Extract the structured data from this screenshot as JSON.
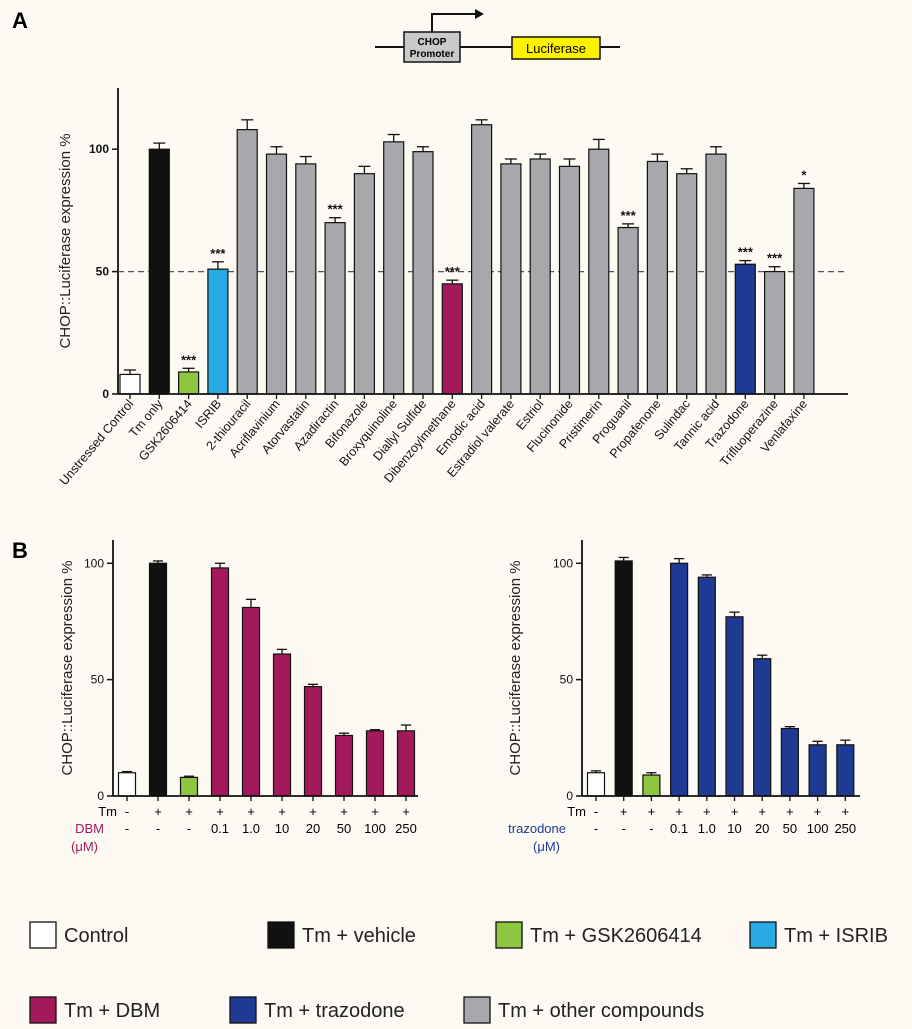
{
  "panel_labels": {
    "a": "A",
    "b": "B"
  },
  "diagram": {
    "promoter_line1": "CHOP",
    "promoter_line2": "Promoter",
    "reporter": "Luciferase"
  },
  "colors": {
    "control": "#ffffff",
    "vehicle": "#111111",
    "gsk": "#8dc63f",
    "isrib": "#29a9e1",
    "dbm": "#a3195b",
    "trazodone": "#1f3a93",
    "other": "#a6a8ab",
    "reporter_fill": "#fff200"
  },
  "chart_data": [
    {
      "type": "bar",
      "panel": "A",
      "ylabel": "CHOP::Luciferase expression %",
      "ylim": [
        0,
        125
      ],
      "yticks": [
        0,
        50,
        100
      ],
      "reference_line": 50,
      "categories": [
        "Unstressed Control",
        "Tm only",
        "GSK2606414",
        "ISRIB",
        "2-thiouracil",
        "Acriflavinium",
        "Atorvastatin",
        "Azadiractin",
        "Bifonazole",
        "Broxyquinoline",
        "Diallyl Sulfide",
        "Dibenzoylmethane",
        "Emodic acid",
        "Estradiol valerate",
        "Estriol",
        "Flucinonide",
        "Pristimerin",
        "Proguanil",
        "Propafenone",
        "Sulindac",
        "Tannic acid",
        "Trazodone",
        "Trifluoperazine",
        "Venlafaxine"
      ],
      "values": [
        8,
        100,
        9,
        51,
        108,
        98,
        94,
        70,
        90,
        103,
        99,
        45,
        110,
        94,
        96,
        93,
        100,
        68,
        95,
        90,
        98,
        53,
        50,
        84
      ],
      "errors": [
        1.8,
        2.5,
        1.5,
        3,
        4,
        3,
        3,
        2,
        3,
        3,
        2,
        1.5,
        2,
        2,
        2,
        3,
        4,
        1.5,
        3,
        2,
        3,
        1.5,
        2,
        2
      ],
      "groups": [
        "control",
        "vehicle",
        "gsk",
        "isrib",
        "other",
        "other",
        "other",
        "other",
        "other",
        "other",
        "other",
        "dbm",
        "other",
        "other",
        "other",
        "other",
        "other",
        "other",
        "other",
        "other",
        "other",
        "trazodone",
        "other",
        "other"
      ],
      "significance": [
        "",
        "",
        "***",
        "***",
        "",
        "",
        "",
        "***",
        "",
        "",
        "",
        "***",
        "",
        "",
        "",
        "",
        "",
        "***",
        "",
        "",
        "",
        "***",
        "***",
        "*"
      ]
    },
    {
      "type": "bar",
      "panel": "B-left",
      "ylabel": "CHOP::Luciferase expression %",
      "ylim": [
        0,
        110
      ],
      "yticks": [
        0,
        50,
        100
      ],
      "tm_row": [
        "-",
        "+",
        "+",
        "+",
        "+",
        "+",
        "+",
        "+",
        "+",
        "+"
      ],
      "dose_label": "DBM",
      "dose_unit": "(μM)",
      "dose_row": [
        "-",
        "-",
        "-",
        "0.1",
        "1.0",
        "10",
        "20",
        "50",
        "100",
        "250"
      ],
      "values": [
        10,
        100,
        8,
        98,
        81,
        61,
        47,
        26,
        28,
        28
      ],
      "errors": [
        0.5,
        1,
        0.5,
        2,
        3.5,
        2,
        1,
        1,
        0.5,
        2.5
      ],
      "groups": [
        "control",
        "vehicle",
        "gsk",
        "dbm",
        "dbm",
        "dbm",
        "dbm",
        "dbm",
        "dbm",
        "dbm"
      ]
    },
    {
      "type": "bar",
      "panel": "B-right",
      "ylabel": "CHOP::Luciferase expression %",
      "ylim": [
        0,
        110
      ],
      "yticks": [
        0,
        50,
        100
      ],
      "tm_row": [
        "-",
        "+",
        "+",
        "+",
        "+",
        "+",
        "+",
        "+",
        "+",
        "+"
      ],
      "dose_label": "trazodone",
      "dose_unit": "(μM)",
      "dose_row": [
        "-",
        "-",
        "-",
        "0.1",
        "1.0",
        "10",
        "20",
        "50",
        "100",
        "250"
      ],
      "values": [
        10,
        101,
        9,
        100,
        94,
        77,
        59,
        29,
        22,
        22
      ],
      "errors": [
        0.8,
        1.5,
        1,
        2,
        1,
        2,
        1.5,
        0.8,
        1.5,
        2
      ],
      "groups": [
        "control",
        "vehicle",
        "gsk",
        "trazodone",
        "trazodone",
        "trazodone",
        "trazodone",
        "trazodone",
        "trazodone",
        "trazodone"
      ]
    }
  ],
  "tm_label": "Tm",
  "legend": [
    {
      "group": "control",
      "label": "Control"
    },
    {
      "group": "vehicle",
      "label": "Tm + vehicle"
    },
    {
      "group": "gsk",
      "label": "Tm + GSK2606414"
    },
    {
      "group": "isrib",
      "label": "Tm + ISRIB"
    },
    {
      "group": "dbm",
      "label": "Tm + DBM"
    },
    {
      "group": "trazodone",
      "label": "Tm + trazodone"
    },
    {
      "group": "other",
      "label": "Tm + other compounds"
    }
  ]
}
